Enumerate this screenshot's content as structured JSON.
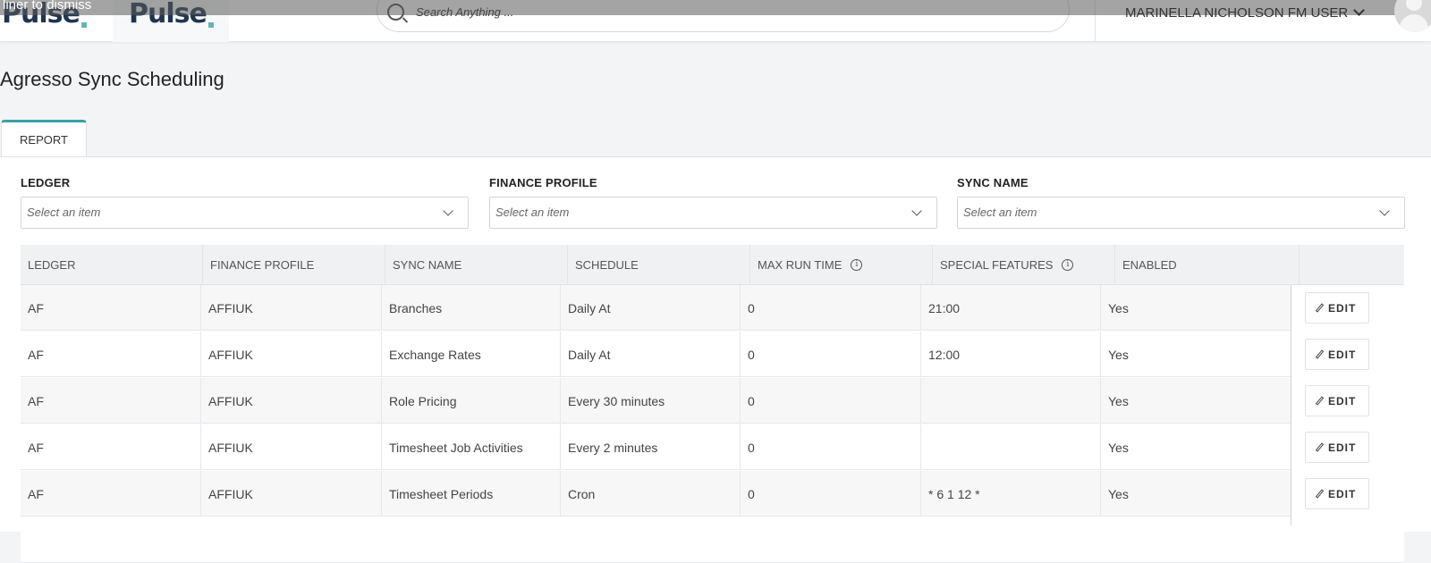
{
  "header": {
    "dismiss_text": "liner to dismiss",
    "logo_text": "Pulse",
    "search_placeholder": "Search Anything ...",
    "user_name": "MARINELLA NICHOLSON FM USER"
  },
  "page": {
    "title": "Agresso Sync Scheduling"
  },
  "tabs": [
    {
      "label": "REPORT",
      "active": true
    }
  ],
  "filters": [
    {
      "label": "LEDGER",
      "placeholder": "Select an item"
    },
    {
      "label": "FINANCE PROFILE",
      "placeholder": "Select an item"
    },
    {
      "label": "SYNC NAME",
      "placeholder": "Select an item"
    }
  ],
  "table": {
    "columns": [
      "LEDGER",
      "FINANCE PROFILE",
      "SYNC NAME",
      "SCHEDULE",
      "MAX RUN TIME",
      "SPECIAL FEATURES",
      "ENABLED"
    ],
    "info_columns": [
      "MAX RUN TIME",
      "SPECIAL FEATURES"
    ],
    "action_label": "EDIT",
    "rows": [
      {
        "ledger": "AF",
        "finance_profile": "AFFIUK",
        "sync_name": "Branches",
        "schedule": "Daily At",
        "max_run_time": "0",
        "special_features": "21:00",
        "enabled": "Yes"
      },
      {
        "ledger": "AF",
        "finance_profile": "AFFIUK",
        "sync_name": "Exchange Rates",
        "schedule": "Daily At",
        "max_run_time": "0",
        "special_features": "12:00",
        "enabled": "Yes"
      },
      {
        "ledger": "AF",
        "finance_profile": "AFFIUK",
        "sync_name": "Role Pricing",
        "schedule": "Every 30 minutes",
        "max_run_time": "0",
        "special_features": "",
        "enabled": "Yes"
      },
      {
        "ledger": "AF",
        "finance_profile": "AFFIUK",
        "sync_name": "Timesheet Job Activities",
        "schedule": "Every 2 minutes",
        "max_run_time": "0",
        "special_features": "",
        "enabled": "Yes"
      },
      {
        "ledger": "AF",
        "finance_profile": "AFFIUK",
        "sync_name": "Timesheet Periods",
        "schedule": "Cron",
        "max_run_time": "0",
        "special_features": "* 6 1 12 *",
        "enabled": "Yes"
      }
    ]
  },
  "colors": {
    "accent": "#3aa0a2",
    "brand_navy": "#1f3550",
    "page_bg": "#f3f4f6"
  }
}
